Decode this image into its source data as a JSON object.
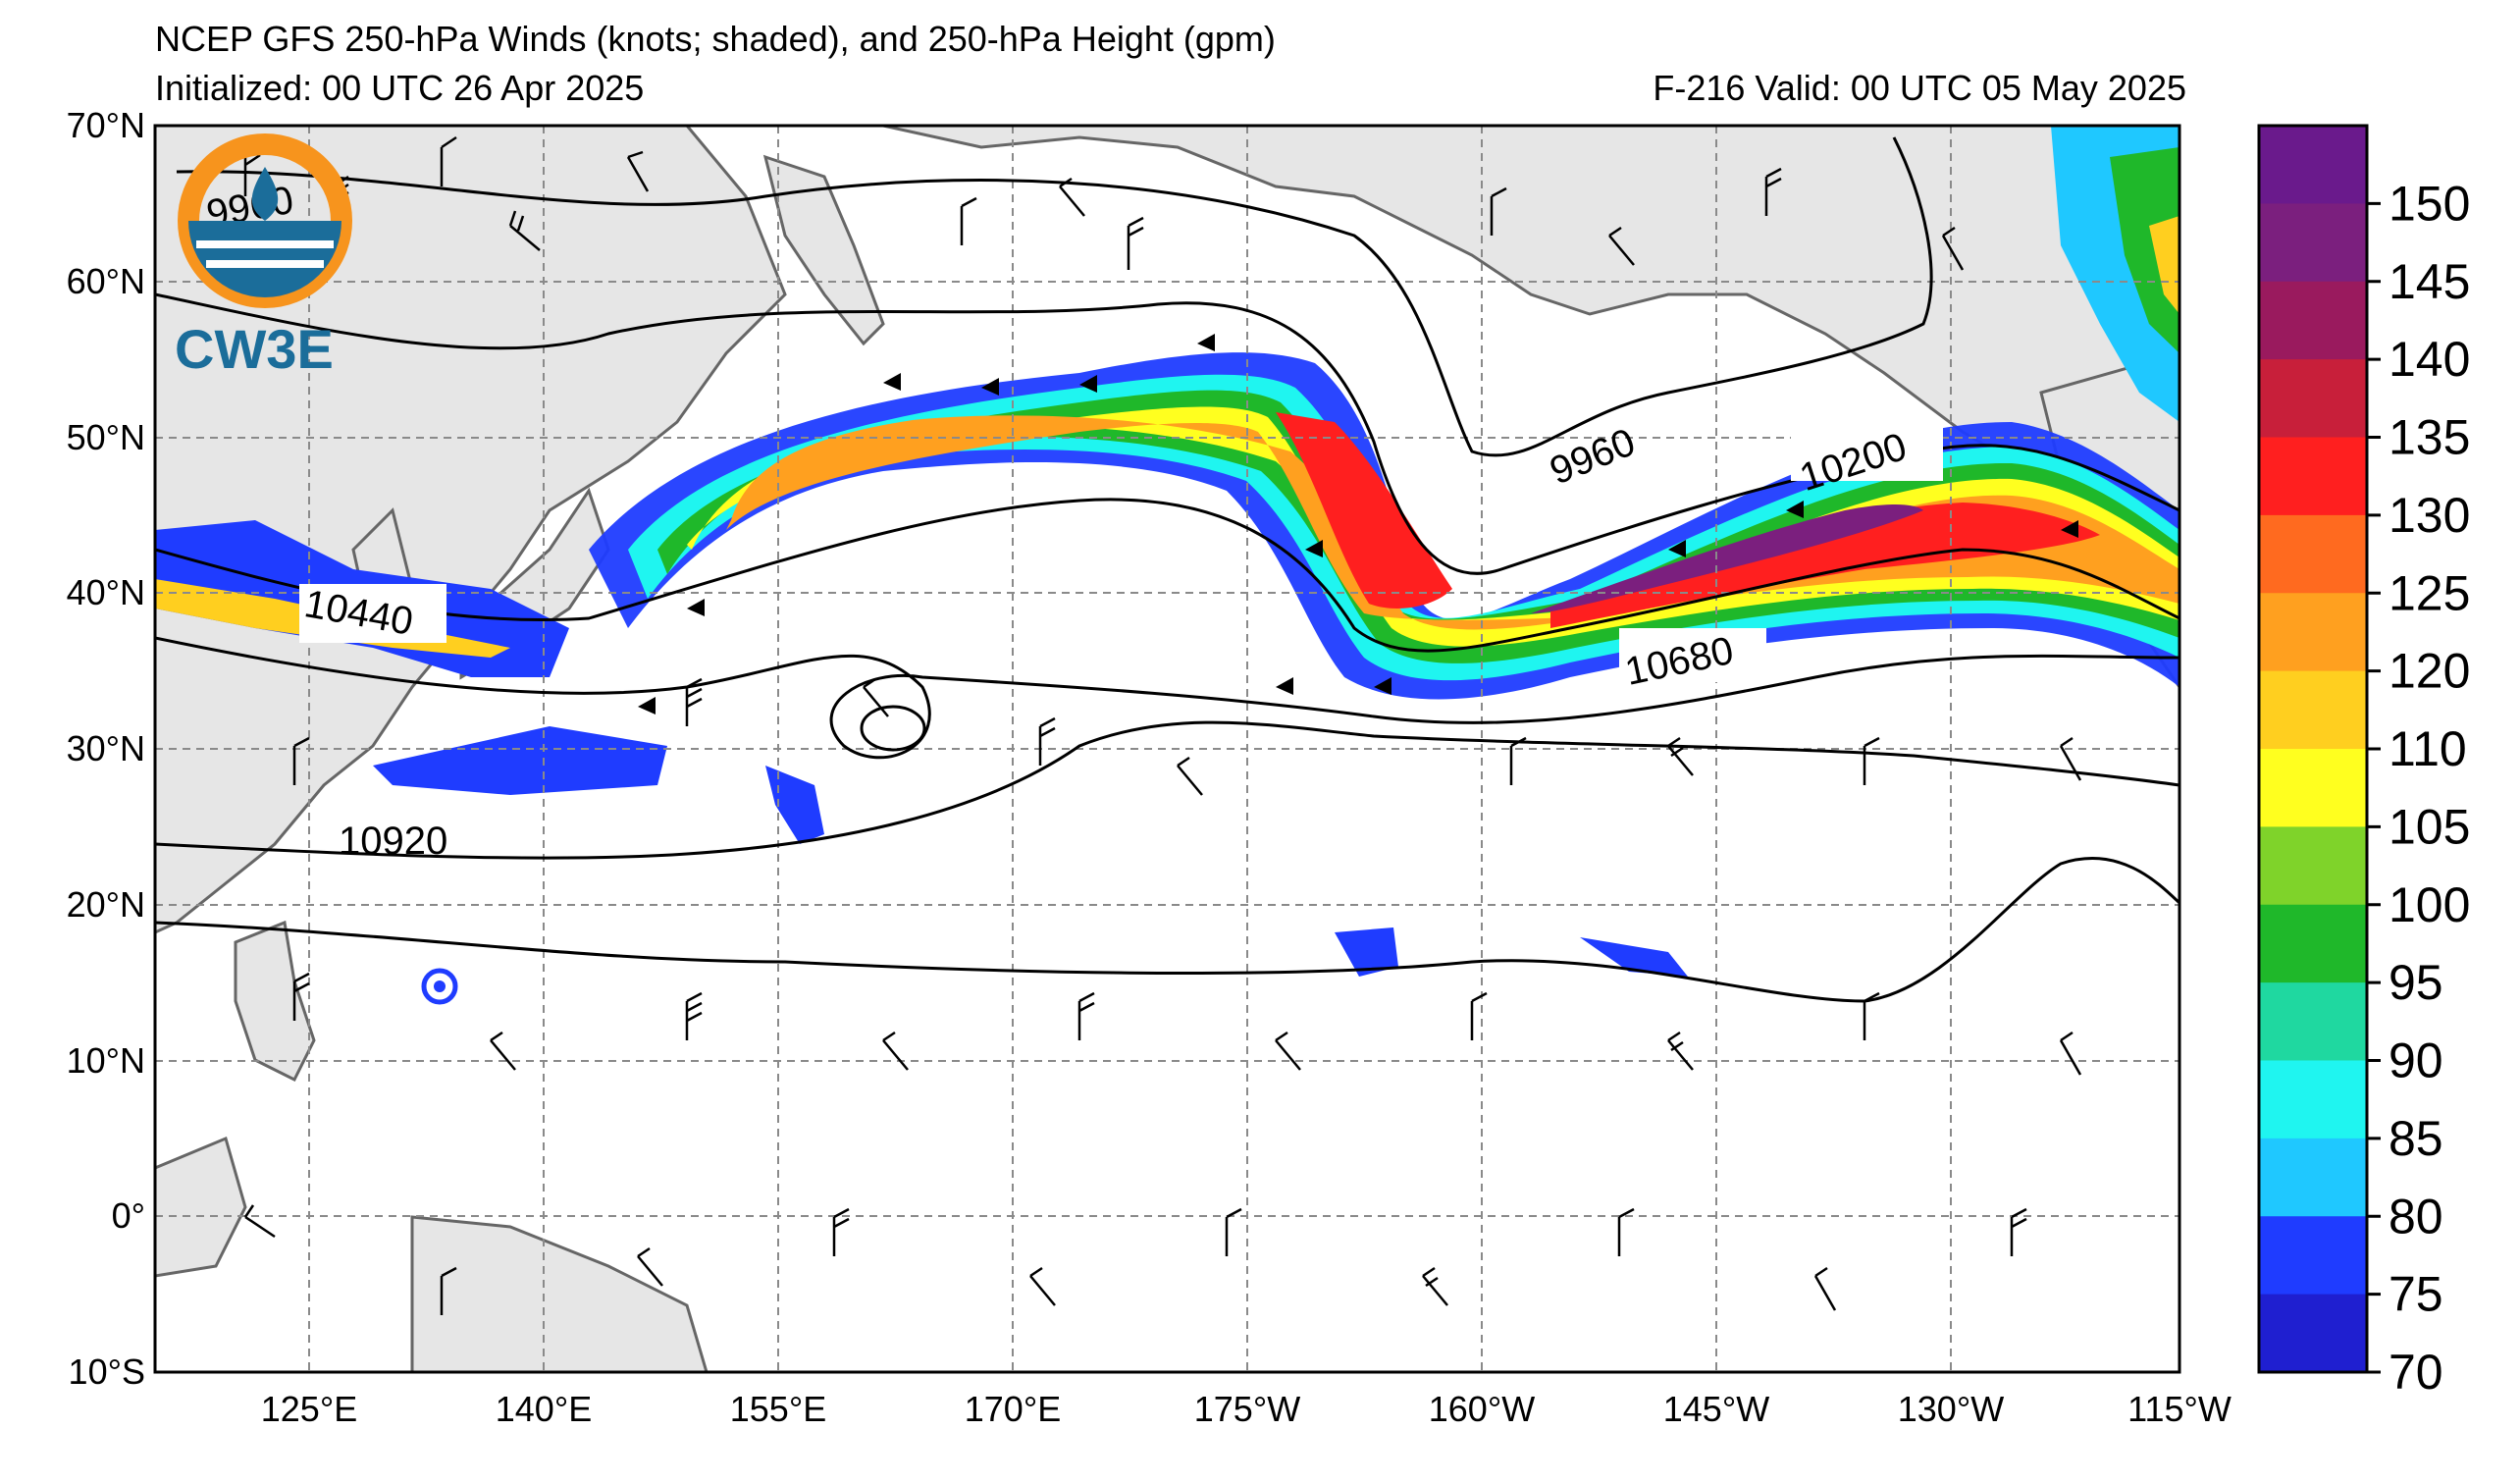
{
  "title": {
    "line1": "NCEP GFS 250-hPa Winds (knots; shaded), and 250-hPa Height (gpm)",
    "line2": "Initialized: 00 UTC 26 Apr 2025",
    "valid": "F-216  Valid: 00 UTC 05 May 2025"
  },
  "logo": {
    "text": "CW3E",
    "icon": "cw3e-logo-icon",
    "colors": {
      "ring": "#f7941d",
      "blue": "#1b6d9a"
    }
  },
  "axes": {
    "lat_labels": [
      "70°N",
      "60°N",
      "50°N",
      "40°N",
      "30°N",
      "20°N",
      "10°N",
      "0°",
      "10°S"
    ],
    "lon_labels": [
      "125°E",
      "140°E",
      "155°E",
      "170°E",
      "175°W",
      "160°W",
      "145°W",
      "130°W",
      "115°W"
    ]
  },
  "contour_labels": [
    "9960",
    "9960",
    "10200",
    "10440",
    "10680",
    "10920"
  ],
  "colorbar": {
    "ticks": [
      "150",
      "145",
      "140",
      "135",
      "130",
      "125",
      "120",
      "110",
      "105",
      "100",
      "95",
      "90",
      "85",
      "80",
      "75",
      "70"
    ],
    "colors": [
      "#6a1a8c",
      "#7b1f7e",
      "#9a1a5e",
      "#c81f3a",
      "#ff1f1f",
      "#ff6a1f",
      "#ffa01f",
      "#ffcf1f",
      "#ffff1f",
      "#7fd32a",
      "#1fb82a",
      "#1fd8a0",
      "#1ff5f0",
      "#1fc8ff",
      "#1f3cff",
      "#1f1fd0"
    ]
  },
  "colors": {
    "land": "#e6e6e6",
    "coast": "#666666",
    "grid": "#8a8a8a"
  }
}
